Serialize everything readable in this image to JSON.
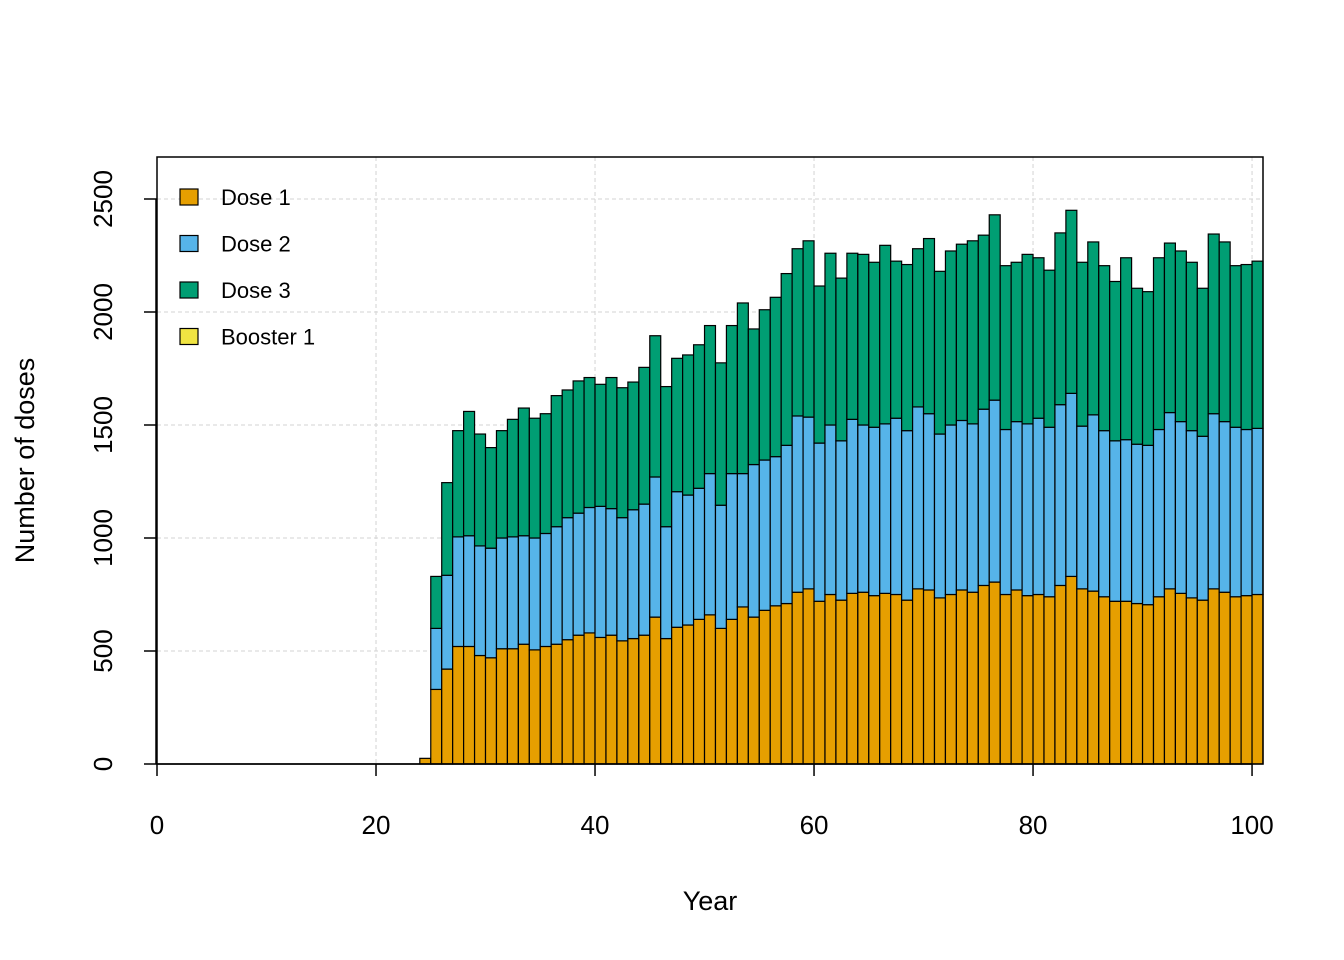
{
  "chart_data": {
    "type": "bar",
    "stacked": true,
    "title": "",
    "xlabel": "Year",
    "ylabel": "Number of doses",
    "xlim": [
      0,
      101
    ],
    "ylim": [
      0,
      2700
    ],
    "xticks": [
      0,
      20,
      40,
      60,
      80,
      100
    ],
    "yticks": [
      0,
      500,
      1000,
      1500,
      2000,
      2500
    ],
    "grid": true,
    "legend": {
      "position": "top-left",
      "entries": [
        "Dose 1",
        "Dose 2",
        "Dose 3",
        "Booster 1"
      ]
    },
    "x": [
      25,
      26,
      27,
      28,
      29,
      30,
      31,
      32,
      33,
      34,
      35,
      36,
      37,
      38,
      39,
      40,
      41,
      42,
      43,
      44,
      45,
      46,
      47,
      48,
      49,
      50,
      51,
      52,
      53,
      54,
      55,
      56,
      57,
      58,
      59,
      60,
      61,
      62,
      63,
      64,
      65,
      66,
      67,
      68,
      69,
      70,
      71,
      72,
      73,
      74,
      75,
      76,
      77,
      78,
      79,
      80,
      81,
      82,
      83,
      84,
      85,
      86,
      87,
      88,
      89,
      90,
      91,
      92,
      93,
      94,
      95,
      96,
      97,
      98,
      99,
      100,
      101
    ],
    "series": [
      {
        "name": "Dose 1",
        "color": "#E69F00",
        "values": [
          25,
          330,
          420,
          520,
          520,
          480,
          470,
          510,
          510,
          530,
          505,
          520,
          530,
          550,
          570,
          580,
          560,
          570,
          545,
          555,
          570,
          650,
          555,
          605,
          615,
          640,
          660,
          600,
          640,
          695,
          650,
          680,
          700,
          710,
          760,
          775,
          720,
          750,
          725,
          755,
          760,
          745,
          755,
          750,
          725,
          775,
          770,
          735,
          750,
          770,
          760,
          790,
          805,
          750,
          770,
          745,
          750,
          740,
          790,
          830,
          775,
          765,
          740,
          720,
          720,
          710,
          705,
          740,
          775,
          755,
          735,
          725,
          775,
          760,
          740,
          745,
          750
        ]
      },
      {
        "name": "Dose 2",
        "color": "#56B4E9",
        "values": [
          0,
          270,
          415,
          485,
          490,
          485,
          485,
          490,
          495,
          480,
          495,
          500,
          520,
          540,
          540,
          555,
          580,
          560,
          545,
          570,
          580,
          620,
          495,
          600,
          575,
          580,
          625,
          545,
          645,
          590,
          675,
          665,
          660,
          700,
          780,
          760,
          700,
          750,
          705,
          770,
          740,
          745,
          750,
          780,
          750,
          805,
          780,
          725,
          750,
          750,
          745,
          780,
          805,
          730,
          745,
          760,
          780,
          750,
          800,
          810,
          720,
          780,
          735,
          710,
          715,
          705,
          705,
          740,
          780,
          760,
          740,
          725,
          775,
          755,
          750,
          735,
          735
        ]
      },
      {
        "name": "Dose 3",
        "color": "#009E73",
        "values": [
          0,
          230,
          410,
          470,
          550,
          495,
          445,
          475,
          520,
          565,
          530,
          530,
          580,
          565,
          585,
          575,
          540,
          580,
          575,
          565,
          605,
          625,
          620,
          590,
          620,
          635,
          655,
          630,
          655,
          755,
          600,
          665,
          705,
          760,
          740,
          780,
          695,
          760,
          720,
          735,
          755,
          730,
          790,
          695,
          735,
          700,
          775,
          720,
          770,
          780,
          810,
          770,
          820,
          725,
          705,
          750,
          710,
          695,
          760,
          810,
          725,
          765,
          730,
          705,
          805,
          690,
          680,
          760,
          750,
          755,
          745,
          655,
          795,
          795,
          715,
          730,
          740
        ]
      },
      {
        "name": "Booster 1",
        "color": "#F0E442",
        "values": [
          0,
          0,
          0,
          0,
          0,
          0,
          0,
          0,
          0,
          0,
          0,
          0,
          0,
          0,
          0,
          0,
          0,
          0,
          0,
          0,
          0,
          0,
          0,
          0,
          0,
          0,
          0,
          0,
          0,
          0,
          0,
          0,
          0,
          0,
          0,
          0,
          0,
          0,
          0,
          0,
          0,
          0,
          0,
          0,
          0,
          0,
          0,
          0,
          0,
          0,
          0,
          0,
          0,
          0,
          0,
          0,
          0,
          0,
          0,
          0,
          0,
          0,
          0,
          0,
          0,
          0,
          0,
          0,
          0,
          0,
          0,
          0,
          0,
          0,
          0,
          0,
          0
        ]
      }
    ]
  }
}
